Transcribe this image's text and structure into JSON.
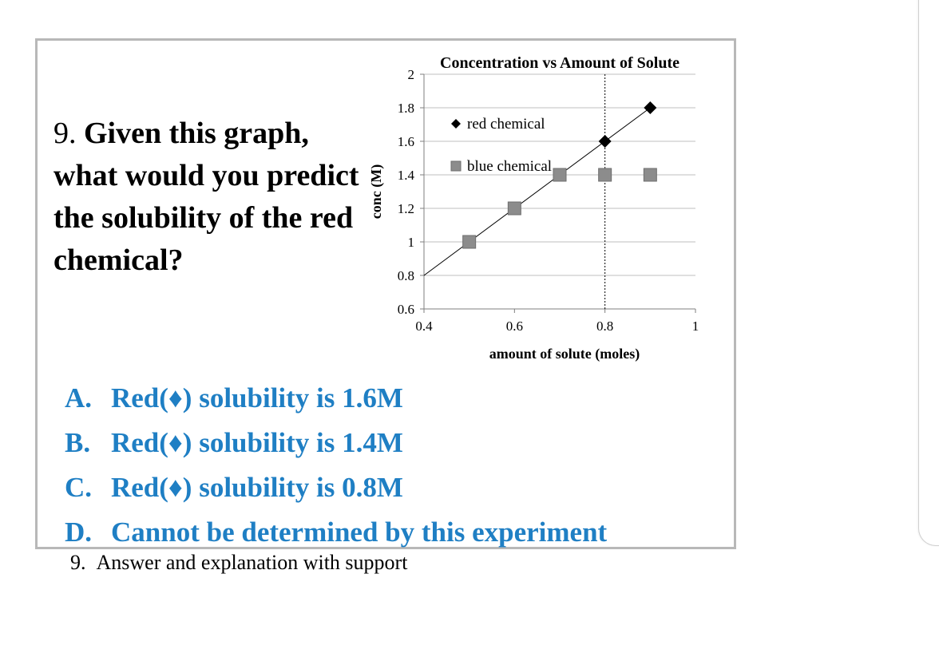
{
  "question": {
    "number": "9.",
    "text": "Given this graph, what would you predict the solubility of the red chemical?"
  },
  "chart_data": {
    "type": "scatter",
    "title": "Concentration vs Amount of Solute",
    "xlabel": "amount of solute (moles)",
    "ylabel": "conc (M)",
    "xlim": [
      0.4,
      1
    ],
    "ylim": [
      0.6,
      2
    ],
    "xticks": [
      "0.4",
      "0.6",
      "0.8",
      "1"
    ],
    "yticks": [
      "0.6",
      "0.8",
      "1",
      "1.2",
      "1.4",
      "1.6",
      "1.8",
      "2"
    ],
    "grid": "horizontal",
    "legend_position": "top-left",
    "vertical_reference_x": 0.8,
    "trendline": {
      "x": [
        0.4,
        0.9
      ],
      "y": [
        0.8,
        1.8
      ]
    },
    "series": [
      {
        "name": "red chemical",
        "marker": "diamond",
        "color": "#000000",
        "x": [
          0.8,
          0.9
        ],
        "y": [
          1.6,
          1.8
        ]
      },
      {
        "name": "blue chemical",
        "marker": "square",
        "color": "#8c8c8c",
        "x": [
          0.5,
          0.6,
          0.7,
          0.8,
          0.9
        ],
        "y": [
          1.0,
          1.2,
          1.4,
          1.4,
          1.4
        ]
      }
    ]
  },
  "options": [
    {
      "letter": "A.",
      "text": "Red(♦) solubility is 1.6M"
    },
    {
      "letter": "B.",
      "text": "Red(♦) solubility is 1.4M"
    },
    {
      "letter": "C.",
      "text": "Red(♦) solubility is 0.8M"
    },
    {
      "letter": "D.",
      "text": "Cannot be determined by this experiment"
    }
  ],
  "caption": {
    "number": "9.",
    "text": "Answer and explanation with support"
  }
}
